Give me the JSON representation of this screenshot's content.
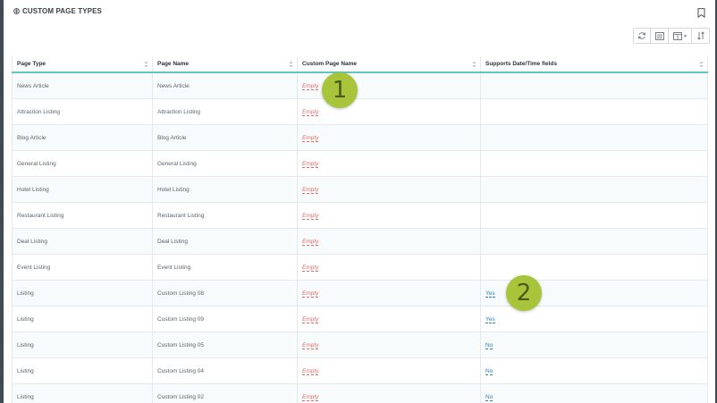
{
  "panel": {
    "title": "CUSTOM PAGE TYPES"
  },
  "icons": {
    "title_icon": "custom-page-types-icon",
    "bookmark": "bookmark-icon",
    "toolbar": [
      "refresh-icon",
      "list-view-icon",
      "columns-icon",
      "sort-icon"
    ]
  },
  "table": {
    "columns": [
      "Page Type",
      "Page Name",
      "Custom Page Name",
      "Supports Date/Time fields"
    ],
    "rows": [
      {
        "page_type": "News Article",
        "page_name": "News Article",
        "custom_name": "Empty",
        "supports": ""
      },
      {
        "page_type": "Attraction Listing",
        "page_name": "Attraction Listing",
        "custom_name": "Empty",
        "supports": ""
      },
      {
        "page_type": "Blog Article",
        "page_name": "Blog Article",
        "custom_name": "Empty",
        "supports": ""
      },
      {
        "page_type": "General Listing",
        "page_name": "General Listing",
        "custom_name": "Empty",
        "supports": ""
      },
      {
        "page_type": "Hotel Listing",
        "page_name": "Hotel Listing",
        "custom_name": "Empty",
        "supports": ""
      },
      {
        "page_type": "Restaurant Listing",
        "page_name": "Restaurant Listing",
        "custom_name": "Empty",
        "supports": ""
      },
      {
        "page_type": "Deal Listing",
        "page_name": "Deal Listing",
        "custom_name": "Empty",
        "supports": ""
      },
      {
        "page_type": "Event Listing",
        "page_name": "Event Listing",
        "custom_name": "Empty",
        "supports": ""
      },
      {
        "page_type": "Listing",
        "page_name": "Custom Listing 08",
        "custom_name": "Empty",
        "supports": "Yes"
      },
      {
        "page_type": "Listing",
        "page_name": "Custom Listing 09",
        "custom_name": "Empty",
        "supports": "Yes"
      },
      {
        "page_type": "Listing",
        "page_name": "Custom Listing 05",
        "custom_name": "Empty",
        "supports": "No"
      },
      {
        "page_type": "Listing",
        "page_name": "Custom Listing 04",
        "custom_name": "Empty",
        "supports": "No"
      },
      {
        "page_type": "Listing",
        "page_name": "Custom Listing 02",
        "custom_name": "Empty",
        "supports": "No"
      }
    ]
  },
  "callouts": [
    "1",
    "2"
  ],
  "colors": {
    "accent": "#5fc6c2",
    "empty": "#e26a6a",
    "link": "#2a7fb5",
    "callout": "#a7c43a"
  }
}
